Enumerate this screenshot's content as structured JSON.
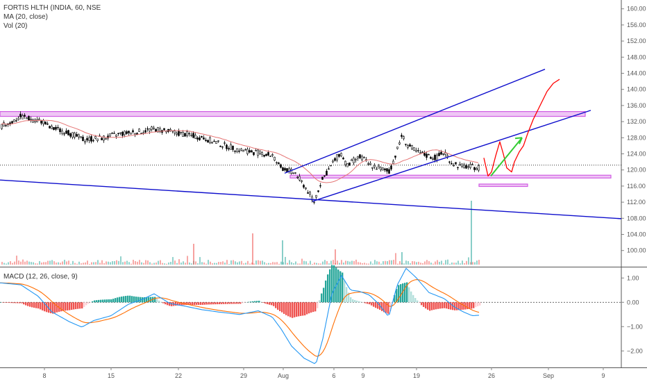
{
  "legend": {
    "symbol": "FORTIS HLTH (INDIA, 60, NSE",
    "ma": "MA (20, close)",
    "vol": "Vol (20)",
    "macd": "MACD (12, 26, close, 9)"
  },
  "colors": {
    "up": "#26a69a",
    "down": "#ef5350",
    "candle": "#000000",
    "ma": "#e57373",
    "macd": "#2196f3",
    "signal": "#ff6d00",
    "zone": "#d05ce3",
    "trend": "#0d0dcc",
    "sketch": "#ff0000",
    "arrow": "#33cc33"
  },
  "chart_data": [
    {
      "type": "candlestick",
      "panel": "price",
      "y_axis_ticks": [
        "160.00",
        "156.00",
        "152.00",
        "148.00",
        "144.00",
        "140.00",
        "136.00",
        "132.00",
        "128.00",
        "124.00",
        "120.00",
        "116.00",
        "112.00",
        "108.00",
        "104.00",
        "100.00"
      ],
      "x_axis_ticks": [
        "8",
        "15",
        "22",
        "29",
        "Aug",
        "6",
        "9",
        "19",
        "26",
        "Sep",
        "9"
      ],
      "ylim": [
        96.5,
        161.5
      ],
      "series": [
        {
          "name": "MA (20, close)"
        }
      ],
      "annotations": [
        "resistance zone ~133.4-134.4",
        "support zone ~118.0-118.6",
        "zone ~115.9-116.5",
        "ascending channel",
        "descending trendline",
        "red projection sketch",
        "green arrow"
      ]
    },
    {
      "type": "bar",
      "panel": "volume",
      "note": "Vol (20) histogram with spike near Aug 23"
    },
    {
      "type": "line",
      "panel": "macd",
      "y_axis_ticks": [
        "1.00",
        "0.00",
        "−1.00",
        "−2.00"
      ],
      "ylim": [
        -2.65,
        1.35
      ],
      "series": [
        {
          "name": "MACD"
        },
        {
          "name": "Signal"
        },
        {
          "name": "Histogram"
        }
      ]
    }
  ]
}
